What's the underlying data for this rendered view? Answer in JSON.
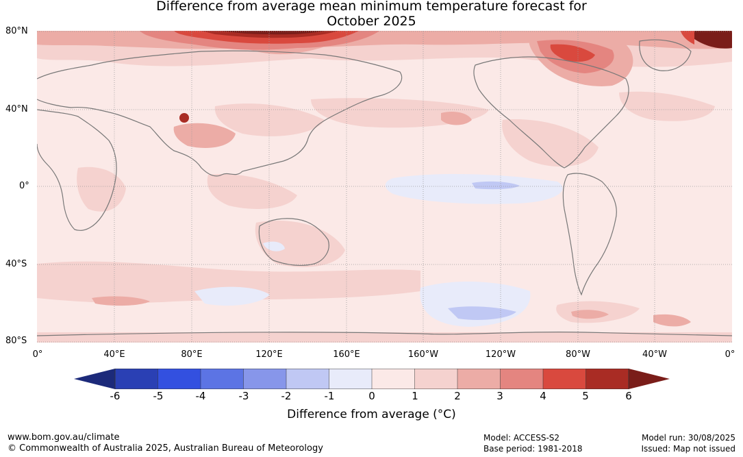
{
  "title_line1": "Difference from average mean minimum temperature forecast for",
  "title_line2": "October 2025",
  "lat_labels": [
    "80°N",
    "40°N",
    "0°",
    "40°S",
    "80°S"
  ],
  "lon_labels": [
    "0°",
    "40°E",
    "80°E",
    "120°E",
    "160°E",
    "160°W",
    "120°W",
    "80°W",
    "40°W",
    "0°"
  ],
  "colorbar": {
    "ticks": [
      "-6",
      "-5",
      "-4",
      "-3",
      "-2",
      "-1",
      "0",
      "1",
      "2",
      "3",
      "4",
      "5",
      "6"
    ],
    "label": "Difference from average (°C)",
    "colors": [
      "#1c2a7a",
      "#2a40b4",
      "#3350e0",
      "#5c74e4",
      "#8796ea",
      "#c0c8f4",
      "#e8ebfa",
      "#fbe9e7",
      "#f5d2cf",
      "#ecaca6",
      "#e48580",
      "#d9493e",
      "#a92c24",
      "#7a1d19"
    ]
  },
  "map_colors": {
    "ocean_base": "#fbe9e7",
    "warm1": "#f5d2cf",
    "warm2": "#ecaca6",
    "warm3": "#e48580",
    "warm4": "#d9493e",
    "warm5": "#a92c24",
    "warm6": "#7a1d19",
    "cool1": "#e8ebfa",
    "cool2": "#c0c8f4",
    "coast": "#777777",
    "grid": "#999999"
  },
  "footer": {
    "website": "www.bom.gov.au/climate",
    "copyright": "© Commonwealth of Australia 2025, Australian Bureau of Meteorology",
    "model": "Model: ACCESS-S2",
    "base_period": "Base period: 1981-2018",
    "model_run": "Model run: 30/08/2025",
    "issued": "Issued: Map not issued"
  }
}
